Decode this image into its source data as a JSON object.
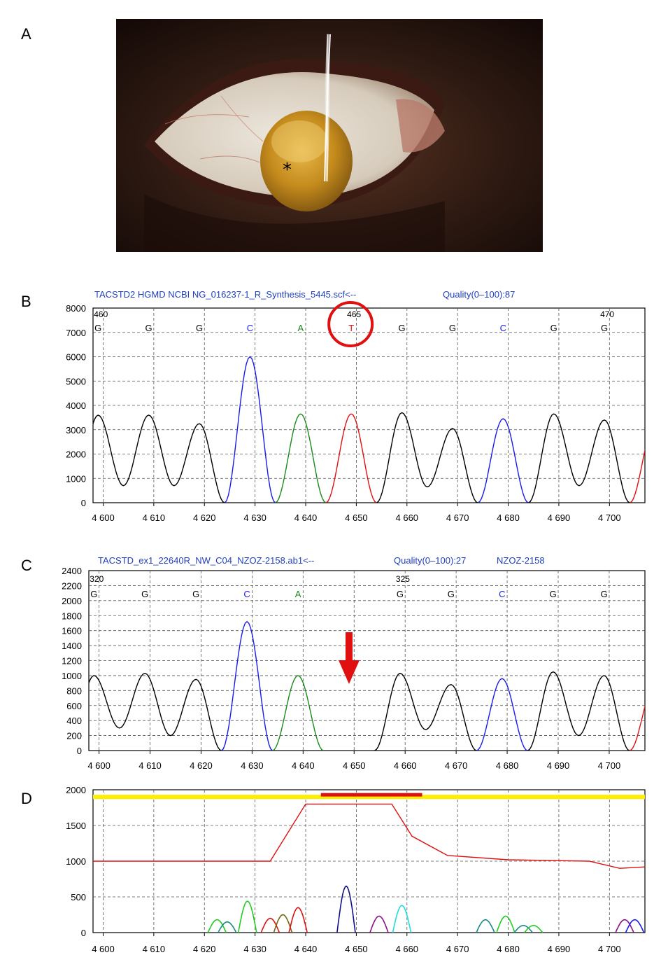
{
  "panels": {
    "A": {
      "letter": "A",
      "asterisk": "*"
    },
    "B": {
      "letter": "B",
      "title": "TACSTD2 HGMD NCBI NG_016237-1_R_Synthesis_5445.scf<--",
      "quality": "Quality(0–100):87"
    },
    "C": {
      "letter": "C",
      "title": "TACSTD_ex1_22640R_NW_C04_NZOZ-2158.ab1<--",
      "quality": "Quality(0–100):27",
      "sample": "NZOZ-2158"
    },
    "D": {
      "letter": "D"
    }
  },
  "colors": {
    "G": "#000000",
    "C": "#1a1aee",
    "A": "#1a8a1a",
    "T": "#e01010",
    "annotation": "#e01010",
    "bar": "#ffee00"
  },
  "chart_data": [
    {
      "type": "line",
      "panel": "B",
      "x_ticks": [
        "4 600",
        "4 610",
        "4 620",
        "4 630",
        "4 640",
        "4 650",
        "4 660",
        "4 670",
        "4 680",
        "4 690",
        "4 700"
      ],
      "y_ticks": [
        "0",
        "1000",
        "2000",
        "3000",
        "4000",
        "5000",
        "6000",
        "7000",
        "8000"
      ],
      "xlim": [
        4598,
        4707
      ],
      "ylim": [
        0,
        8000
      ],
      "position_labels": [
        {
          "x": 4599,
          "text": "460"
        },
        {
          "x": 4649,
          "text": "465"
        },
        {
          "x": 4699,
          "text": "470"
        }
      ],
      "base_calls": [
        {
          "x": 4599,
          "base": "G"
        },
        {
          "x": 4609,
          "base": "G"
        },
        {
          "x": 4619,
          "base": "G"
        },
        {
          "x": 4629,
          "base": "C"
        },
        {
          "x": 4639,
          "base": "A"
        },
        {
          "x": 4649,
          "base": "T"
        },
        {
          "x": 4659,
          "base": "G"
        },
        {
          "x": 4669,
          "base": "G"
        },
        {
          "x": 4679,
          "base": "C"
        },
        {
          "x": 4689,
          "base": "G"
        },
        {
          "x": 4699,
          "base": "G"
        }
      ],
      "series": [
        {
          "base": "G",
          "peaks": [
            [
              4599,
              3600
            ],
            [
              4609,
              3600
            ],
            [
              4619,
              3250
            ],
            [
              4659,
              3700
            ],
            [
              4669,
              3050
            ],
            [
              4689,
              3650
            ],
            [
              4699,
              3400
            ]
          ],
          "troughs": [
            [
              4604,
              700
            ],
            [
              4614,
              700
            ],
            [
              4664,
              650
            ],
            [
              4694,
              700
            ]
          ]
        },
        {
          "base": "C",
          "peaks": [
            [
              4629,
              6000
            ],
            [
              4679,
              3450
            ]
          ]
        },
        {
          "base": "A",
          "peaks": [
            [
              4639,
              3650
            ]
          ]
        },
        {
          "base": "T",
          "peaks": [
            [
              4649,
              3650
            ],
            [
              4709,
              3300
            ]
          ]
        }
      ],
      "annotation": {
        "type": "circle",
        "x": 4649
      }
    },
    {
      "type": "line",
      "panel": "C",
      "x_ticks": [
        "4 600",
        "4 610",
        "4 620",
        "4 630",
        "4 640",
        "4 650",
        "4 660",
        "4 670",
        "4 680",
        "4 690",
        "4 700"
      ],
      "y_ticks": [
        "0",
        "200",
        "400",
        "600",
        "800",
        "1000",
        "1200",
        "1400",
        "1600",
        "1800",
        "2000",
        "2200",
        "2400"
      ],
      "xlim": [
        4598,
        4707
      ],
      "ylim": [
        0,
        2400
      ],
      "position_labels": [
        {
          "x": 4599,
          "text": "320"
        },
        {
          "x": 4659,
          "text": "325"
        }
      ],
      "base_calls": [
        {
          "x": 4599,
          "base": "G"
        },
        {
          "x": 4609,
          "base": "G"
        },
        {
          "x": 4619,
          "base": "G"
        },
        {
          "x": 4629,
          "base": "C"
        },
        {
          "x": 4639,
          "base": "A"
        },
        {
          "x": 4659,
          "base": "G"
        },
        {
          "x": 4669,
          "base": "G"
        },
        {
          "x": 4679,
          "base": "C"
        },
        {
          "x": 4689,
          "base": "G"
        },
        {
          "x": 4699,
          "base": "G"
        }
      ],
      "series": [
        {
          "base": "G",
          "peaks": [
            [
              4599,
              1000
            ],
            [
              4609,
              1030
            ],
            [
              4619,
              950
            ],
            [
              4659,
              1030
            ],
            [
              4669,
              880
            ],
            [
              4689,
              1050
            ],
            [
              4699,
              1000
            ]
          ],
          "troughs": [
            [
              4604,
              300
            ],
            [
              4614,
              200
            ],
            [
              4664,
              280
            ],
            [
              4694,
              200
            ]
          ]
        },
        {
          "base": "C",
          "peaks": [
            [
              4629,
              1720
            ],
            [
              4679,
              960
            ]
          ]
        },
        {
          "base": "A",
          "peaks": [
            [
              4639,
              1000
            ]
          ]
        },
        {
          "base": "T",
          "peaks": [
            [
              4709,
              900
            ]
          ]
        }
      ],
      "annotation": {
        "type": "arrow",
        "x": 4649
      }
    },
    {
      "type": "line",
      "panel": "D",
      "x_ticks": [
        "4 600",
        "4 610",
        "4 620",
        "4 630",
        "4 640",
        "4 650",
        "4 660",
        "4 670",
        "4 680",
        "4 690",
        "4 700"
      ],
      "y_ticks": [
        "0",
        "500",
        "1000",
        "1500",
        "2000"
      ],
      "xlim": [
        4598,
        4707
      ],
      "ylim": [
        0,
        2000
      ],
      "bar": {
        "y": 1900
      },
      "highlight": {
        "x0": 4643,
        "x1": 4663,
        "y": 1930
      },
      "line": [
        [
          4598,
          1000
        ],
        [
          4633,
          1000
        ],
        [
          4640,
          1800
        ],
        [
          4657,
          1800
        ],
        [
          4661,
          1350
        ],
        [
          4668,
          1080
        ],
        [
          4680,
          1020
        ],
        [
          4696,
          1000
        ],
        [
          4702,
          900
        ],
        [
          4707,
          920
        ]
      ],
      "spikes": [
        {
          "x": 4622.5,
          "h": 180,
          "color": "#22cc22"
        },
        {
          "x": 4624.5,
          "h": 150,
          "color": "#188888"
        },
        {
          "x": 4628.5,
          "h": 440,
          "color": "#22cc22"
        },
        {
          "x": 4633,
          "h": 200,
          "color": "#dd1111"
        },
        {
          "x": 4635.5,
          "h": 250,
          "color": "#776611"
        },
        {
          "x": 4638.5,
          "h": 350,
          "color": "#dd1111"
        },
        {
          "x": 4648,
          "h": 650,
          "color": "#111188"
        },
        {
          "x": 4654.5,
          "h": 230,
          "color": "#881188"
        },
        {
          "x": 4659,
          "h": 380,
          "color": "#22dddd"
        },
        {
          "x": 4675.5,
          "h": 180,
          "color": "#188888"
        },
        {
          "x": 4679.5,
          "h": 230,
          "color": "#22cc22"
        },
        {
          "x": 4683,
          "h": 100,
          "color": "#188888"
        },
        {
          "x": 4685,
          "h": 100,
          "color": "#22cc22"
        },
        {
          "x": 4703,
          "h": 180,
          "color": "#881188"
        },
        {
          "x": 4705,
          "h": 180,
          "color": "#1a1aee"
        }
      ]
    }
  ]
}
